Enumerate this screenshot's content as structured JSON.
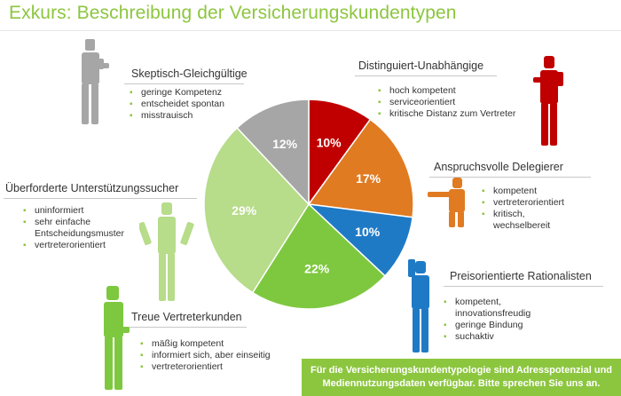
{
  "title": "Exkurs: Beschreibung der Versicherungskundentypen",
  "segments": [
    {
      "name": "Skeptisch-Gleichgültige",
      "bullets": [
        "geringe Kompetenz",
        "entscheidet spontan",
        "misstrauisch"
      ]
    },
    {
      "name": "Distinguiert-Unabhängige",
      "bullets": [
        "hoch kompetent",
        "serviceorientiert",
        "kritische Distanz zum Vertreter"
      ]
    },
    {
      "name": "Anspruchsvolle Delegierer",
      "bullets": [
        "kompetent",
        "vertreterorientiert",
        "kritisch, wechselbereit"
      ]
    },
    {
      "name": "Überforderte Unterstützungssucher",
      "bullets": [
        "uninformiert",
        "sehr einfache Entscheidungsmuster",
        "vertreterorientiert"
      ]
    },
    {
      "name": "Preisorientierte Rationalisten",
      "bullets": [
        "kompetent, innovationsfreudig",
        "geringe Bindung",
        "suchaktiv"
      ]
    },
    {
      "name": "Treue Vertreterkunden",
      "bullets": [
        "mäßig kompetent",
        "informiert sich, aber einseitig",
        "vertreterorientiert"
      ]
    }
  ],
  "chart_data": {
    "type": "pie",
    "slices": [
      {
        "label": "10%",
        "value": 10,
        "color": "#c00000"
      },
      {
        "label": "17%",
        "value": 17,
        "color": "#e07b22"
      },
      {
        "label": "10%",
        "value": 10,
        "color": "#1f7ac6"
      },
      {
        "label": "22%",
        "value": 22,
        "color": "#7ec83f"
      },
      {
        "label": "29%",
        "value": 29,
        "color": "#b7dc8a"
      },
      {
        "label": "12%",
        "value": 12,
        "color": "#a6a6a6"
      }
    ],
    "start": "12 o'clock, clockwise"
  },
  "banner": {
    "line1": "Für die Versicherungskundentypologie sind Adresspotenzial und",
    "line2": "Mediennutzungsdaten verfügbar. Bitte sprechen Sie uns an."
  },
  "colors": {
    "accent": "#8cc63f",
    "label_text": "#333333"
  }
}
